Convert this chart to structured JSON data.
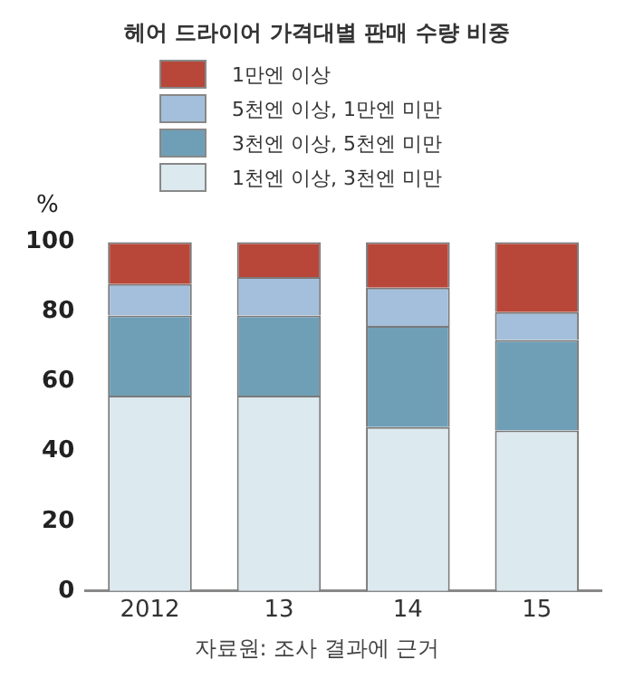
{
  "chart_data": {
    "type": "bar",
    "title": "헤어 드라이어 가격대별 판매 수량 비중",
    "ylabel": "%",
    "categories": [
      "2012",
      "13",
      "14",
      "15"
    ],
    "stacked": true,
    "legend": "top",
    "grid": false,
    "ylim": [
      0,
      100
    ],
    "yticks": [
      0,
      20,
      40,
      60,
      80,
      100
    ],
    "series": [
      {
        "name": "1천엔 이상, 3천엔 미만",
        "color": "#dce9ef",
        "values": [
          56,
          56,
          47,
          46
        ]
      },
      {
        "name": "3천엔 이상, 5천엔 미만",
        "color": "#6f9fb7",
        "values": [
          23,
          23,
          29,
          26
        ]
      },
      {
        "name": "5천엔 이상, 1만엔 미만",
        "color": "#a4bfdb",
        "values": [
          9,
          11,
          11,
          8
        ]
      },
      {
        "name": "1만엔 이상",
        "color": "#b8473a",
        "values": [
          12,
          10,
          13,
          20
        ]
      }
    ],
    "annotations": [
      "자료원: 조사 결과에 근거"
    ]
  }
}
